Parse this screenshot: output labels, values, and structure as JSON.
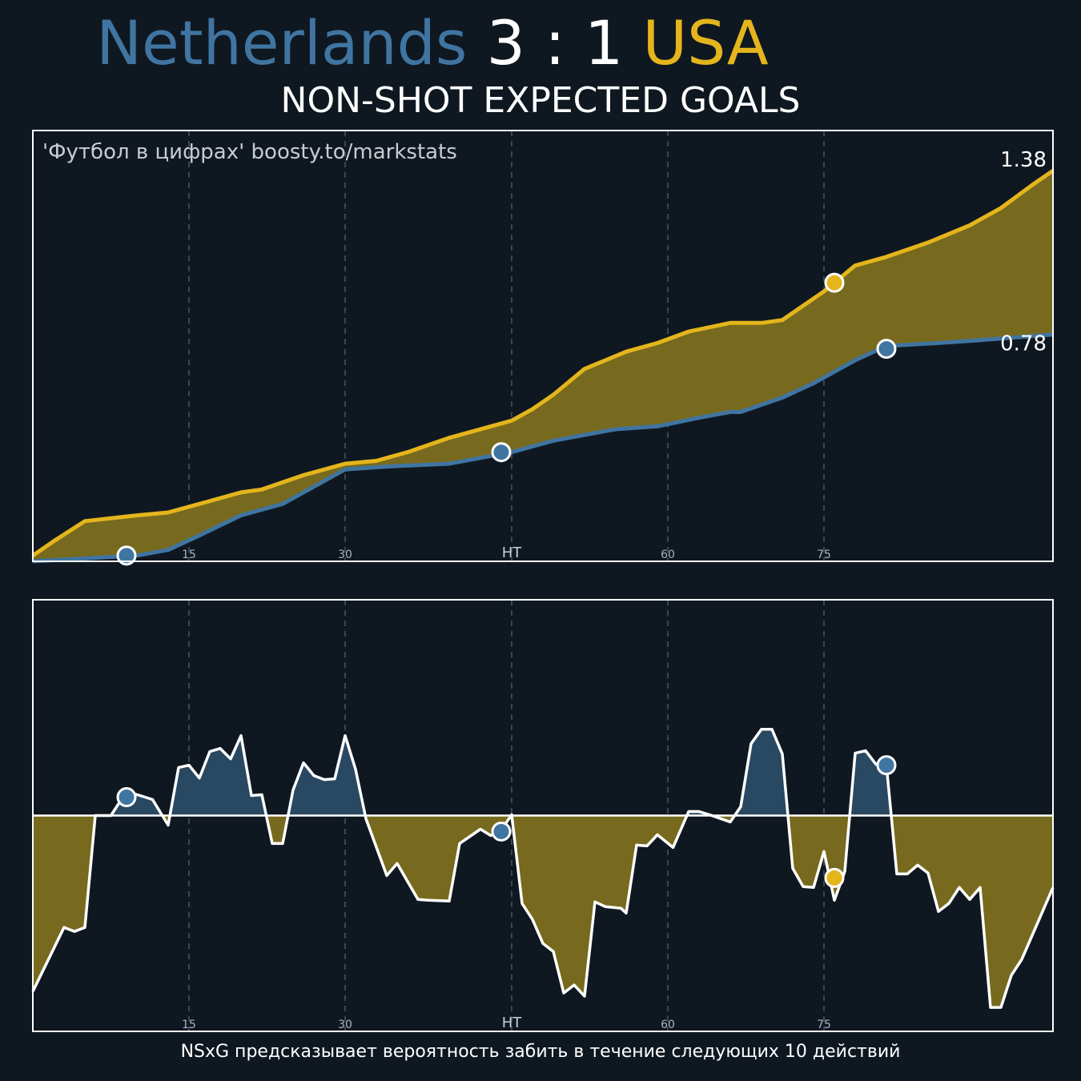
{
  "header": {
    "home_team": "Netherlands",
    "home_score": "3",
    "separator": ":",
    "away_score": "1",
    "away_team": "USA",
    "subtitle": "NON-SHOT EXPECTED GOALS"
  },
  "watermark": "'Футбол в цифрах' boosty.to/markstats",
  "footer": "NSxG предсказывает вероятность забить в течение следующих 10 действий",
  "colors": {
    "background": "#0f1821",
    "home": "#4075a2",
    "away": "#e4b51c",
    "away_fill": "#776a1e",
    "home_fill": "#294862",
    "line": "#ffffff"
  },
  "chart_data": [
    {
      "type": "line",
      "name": "cumulative",
      "x_ticks": [
        {
          "x": 15,
          "label": "15"
        },
        {
          "x": 30,
          "label": "30"
        },
        {
          "x": 46,
          "label": "HT"
        },
        {
          "x": 61,
          "label": "60"
        },
        {
          "x": 76,
          "label": "75"
        }
      ],
      "xlim": [
        0,
        98
      ],
      "ylim": [
        0,
        1.5
      ],
      "series": [
        {
          "team": "Netherlands",
          "final_label": "0.78",
          "points": [
            [
              0,
              0
            ],
            [
              5,
              0.01
            ],
            [
              10,
              0.02
            ],
            [
              13,
              0.04
            ],
            [
              16,
              0.09
            ],
            [
              20,
              0.16
            ],
            [
              24,
              0.2
            ],
            [
              28,
              0.28
            ],
            [
              30,
              0.32
            ],
            [
              34,
              0.33
            ],
            [
              40,
              0.34
            ],
            [
              46,
              0.38
            ],
            [
              50,
              0.42
            ],
            [
              56,
              0.46
            ],
            [
              60,
              0.47
            ],
            [
              64,
              0.5
            ],
            [
              67,
              0.52
            ],
            [
              68,
              0.52
            ],
            [
              72,
              0.57
            ],
            [
              75,
              0.62
            ],
            [
              79,
              0.7
            ],
            [
              82,
              0.75
            ],
            [
              87,
              0.76
            ],
            [
              91,
              0.77
            ],
            [
              98,
              0.79
            ]
          ],
          "goals": [
            [
              9,
              0.02
            ],
            [
              45,
              0.38
            ],
            [
              82,
              0.74
            ]
          ]
        },
        {
          "team": "USA",
          "final_label": "1.38",
          "points": [
            [
              0,
              0.02
            ],
            [
              2,
              0.07
            ],
            [
              5,
              0.14
            ],
            [
              10,
              0.16
            ],
            [
              13,
              0.17
            ],
            [
              16,
              0.2
            ],
            [
              20,
              0.24
            ],
            [
              22,
              0.25
            ],
            [
              26,
              0.3
            ],
            [
              30,
              0.34
            ],
            [
              33,
              0.35
            ],
            [
              36,
              0.38
            ],
            [
              40,
              0.43
            ],
            [
              46,
              0.49
            ],
            [
              48,
              0.53
            ],
            [
              50,
              0.58
            ],
            [
              53,
              0.67
            ],
            [
              57,
              0.73
            ],
            [
              60,
              0.76
            ],
            [
              63,
              0.8
            ],
            [
              67,
              0.83
            ],
            [
              70,
              0.83
            ],
            [
              72,
              0.84
            ],
            [
              76,
              0.94
            ],
            [
              79,
              1.03
            ],
            [
              82,
              1.06
            ],
            [
              86,
              1.11
            ],
            [
              90,
              1.17
            ],
            [
              93,
              1.23
            ],
            [
              96,
              1.31
            ],
            [
              98,
              1.36
            ]
          ],
          "goals": [
            [
              77,
              0.97
            ]
          ]
        }
      ]
    },
    {
      "type": "area",
      "name": "nsxg_difference",
      "x_ticks": [
        {
          "x": 15,
          "label": "15"
        },
        {
          "x": 30,
          "label": "30"
        },
        {
          "x": 46,
          "label": "HT"
        },
        {
          "x": 61,
          "label": "60"
        },
        {
          "x": 76,
          "label": "75"
        }
      ],
      "xlim": [
        0,
        98
      ],
      "ylim": [
        -0.27,
        0.27
      ],
      "points": [
        [
          0,
          -0.22
        ],
        [
          3,
          -0.14
        ],
        [
          4,
          -0.145
        ],
        [
          5,
          -0.14
        ],
        [
          6,
          0
        ],
        [
          7.5,
          0
        ],
        [
          9,
          0.03
        ],
        [
          10.3,
          0.025
        ],
        [
          11.5,
          0.02
        ],
        [
          13,
          -0.012
        ],
        [
          14,
          0.06
        ],
        [
          15,
          0.063
        ],
        [
          16,
          0.047
        ],
        [
          17,
          0.08
        ],
        [
          18,
          0.084
        ],
        [
          19,
          0.071
        ],
        [
          20,
          0.1
        ],
        [
          21,
          0.025
        ],
        [
          22,
          0.026
        ],
        [
          23,
          -0.035
        ],
        [
          24,
          -0.035
        ],
        [
          25,
          0.032
        ],
        [
          26,
          0.066
        ],
        [
          27,
          0.05
        ],
        [
          28,
          0.045
        ],
        [
          29,
          0.046
        ],
        [
          30,
          0.1
        ],
        [
          31,
          0.058
        ],
        [
          32,
          -0.004
        ],
        [
          34,
          -0.075
        ],
        [
          35,
          -0.06
        ],
        [
          37,
          -0.105
        ],
        [
          38,
          -0.106
        ],
        [
          40,
          -0.107
        ],
        [
          41,
          -0.035
        ],
        [
          43,
          -0.017
        ],
        [
          44,
          -0.025
        ],
        [
          45,
          -0.018
        ],
        [
          46,
          0.001
        ],
        [
          47,
          -0.11
        ],
        [
          48,
          -0.13
        ],
        [
          49,
          -0.16
        ],
        [
          50,
          -0.17
        ],
        [
          51,
          -0.222
        ],
        [
          52,
          -0.212
        ],
        [
          53,
          -0.226
        ],
        [
          54,
          -0.108
        ],
        [
          55,
          -0.114
        ],
        [
          56.5,
          -0.116
        ],
        [
          57,
          -0.122
        ],
        [
          58,
          -0.037
        ],
        [
          59,
          -0.038
        ],
        [
          60,
          -0.024
        ],
        [
          61.5,
          -0.04
        ],
        [
          63,
          0.005
        ],
        [
          64,
          0.005
        ],
        [
          65,
          0.001
        ],
        [
          67,
          -0.008
        ],
        [
          68,
          0.011
        ],
        [
          69,
          0.09
        ],
        [
          70,
          0.108
        ],
        [
          71,
          0.108
        ],
        [
          72,
          0.077
        ],
        [
          73,
          -0.066
        ],
        [
          74,
          -0.089
        ],
        [
          75,
          -0.09
        ],
        [
          76,
          -0.045
        ],
        [
          77,
          -0.106
        ],
        [
          78,
          -0.07
        ],
        [
          79,
          0.078
        ],
        [
          80,
          0.081
        ],
        [
          81,
          0.064
        ],
        [
          82,
          0.063
        ],
        [
          83,
          -0.073
        ],
        [
          84,
          -0.073
        ],
        [
          85,
          -0.062
        ],
        [
          86,
          -0.072
        ],
        [
          87,
          -0.12
        ],
        [
          88,
          -0.11
        ],
        [
          89,
          -0.09
        ],
        [
          90,
          -0.105
        ],
        [
          91,
          -0.09
        ],
        [
          92,
          -0.24
        ],
        [
          93,
          -0.24
        ],
        [
          94,
          -0.2
        ],
        [
          95,
          -0.18
        ],
        [
          98,
          -0.09
        ]
      ],
      "goals": [
        {
          "team": "Netherlands",
          "x": 9,
          "y": 0.023
        },
        {
          "team": "Netherlands",
          "x": 45,
          "y": -0.02
        },
        {
          "team": "Netherlands",
          "x": 82,
          "y": 0.063
        },
        {
          "team": "USA",
          "x": 77,
          "y": -0.078
        }
      ]
    }
  ]
}
